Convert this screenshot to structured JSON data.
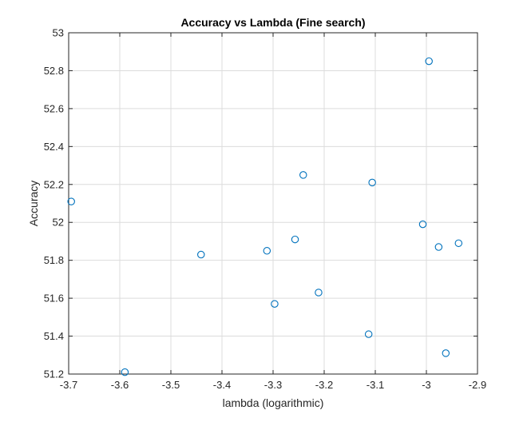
{
  "chart_data": {
    "type": "scatter",
    "title": "Accuracy vs Lambda (Fine search)",
    "xlabel": "lambda (logarithmic)",
    "ylabel": "Accuracy",
    "xlim": [
      -3.7,
      -2.9
    ],
    "ylim": [
      51.2,
      53
    ],
    "xticks": [
      -3.7,
      -3.6,
      -3.5,
      -3.4,
      -3.3,
      -3.2,
      -3.1,
      -3.0,
      -2.9
    ],
    "xtick_labels": [
      "-3.7",
      "-3.6",
      "-3.5",
      "-3.4",
      "-3.3",
      "-3.2",
      "-3.1",
      "-3",
      "-2.9"
    ],
    "yticks": [
      51.2,
      51.4,
      51.6,
      51.8,
      52.0,
      52.2,
      52.4,
      52.6,
      52.8,
      53.0
    ],
    "ytick_labels": [
      "51.2",
      "51.4",
      "51.6",
      "51.8",
      "52",
      "52.2",
      "52.4",
      "52.6",
      "52.8",
      "53"
    ],
    "grid": true,
    "marker": "circle",
    "marker_color": "#0072BD",
    "points": [
      {
        "x": -3.695,
        "y": 52.11
      },
      {
        "x": -3.59,
        "y": 51.21
      },
      {
        "x": -3.441,
        "y": 51.83
      },
      {
        "x": -3.312,
        "y": 51.85
      },
      {
        "x": -3.297,
        "y": 51.57
      },
      {
        "x": -3.257,
        "y": 51.91
      },
      {
        "x": -3.241,
        "y": 52.25
      },
      {
        "x": -3.211,
        "y": 51.63
      },
      {
        "x": -3.113,
        "y": 51.41
      },
      {
        "x": -3.106,
        "y": 52.21
      },
      {
        "x": -3.007,
        "y": 51.99
      },
      {
        "x": -2.995,
        "y": 52.85
      },
      {
        "x": -2.976,
        "y": 51.87
      },
      {
        "x": -2.962,
        "y": 51.31
      },
      {
        "x": -2.937,
        "y": 51.89
      }
    ]
  }
}
